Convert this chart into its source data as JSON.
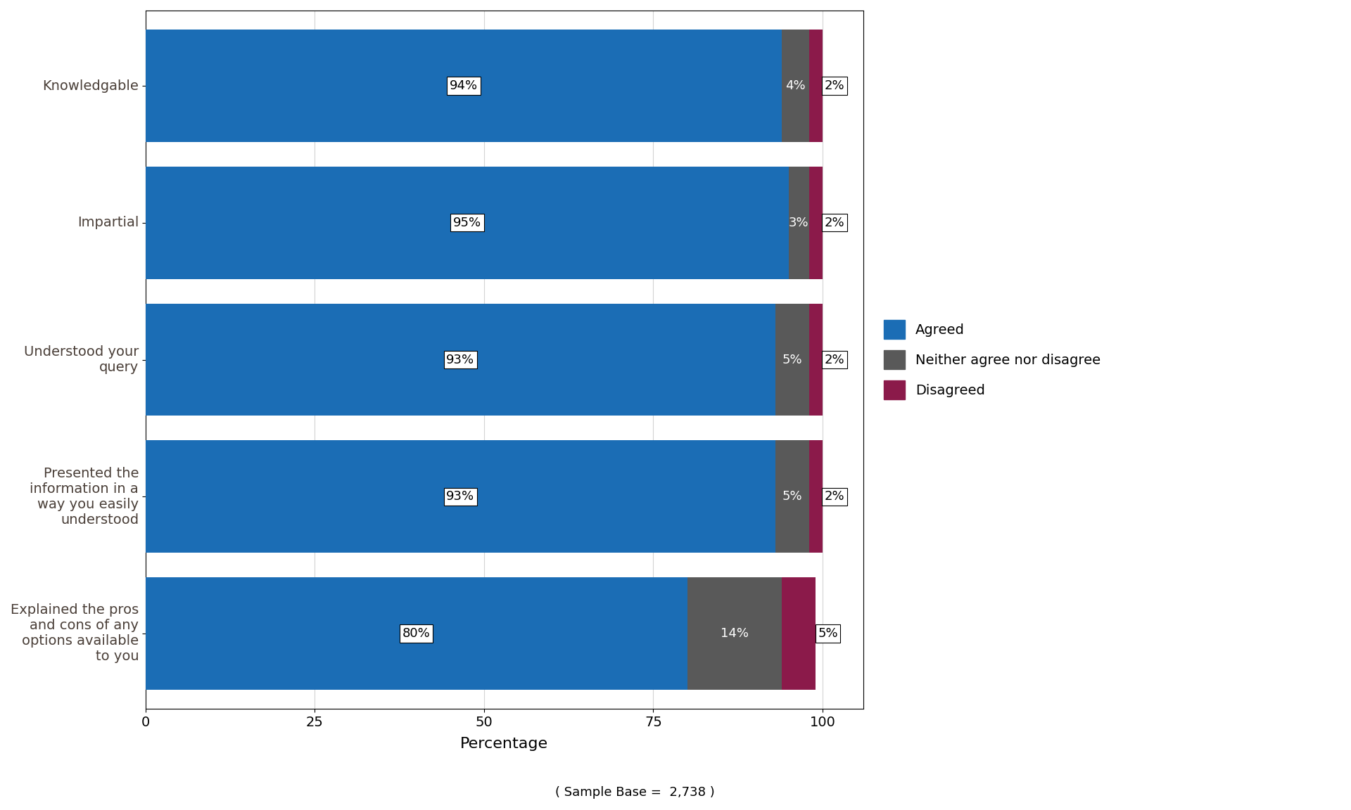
{
  "categories": [
    "Knowledgable",
    "Impartial",
    "Understood your\nquery",
    "Presented the\ninformation in a\nway you easily\nunderstood",
    "Explained the pros\nand cons of any\noptions available\nto you"
  ],
  "agreed": [
    94,
    95,
    93,
    93,
    80
  ],
  "neither": [
    4,
    3,
    5,
    5,
    14
  ],
  "disagreed": [
    2,
    2,
    2,
    2,
    5
  ],
  "agreed_color": "#1B6DB5",
  "neither_color": "#595959",
  "disagreed_color": "#8B1A4A",
  "legend_labels": [
    "Agreed",
    "Neither agree nor disagree",
    "Disagreed"
  ],
  "xlabel": "Percentage",
  "sample_base": "( Sample Base =  2,738 )",
  "xlim": [
    0,
    106
  ],
  "xticks": [
    0,
    25,
    50,
    75,
    100
  ],
  "bar_height": 0.82,
  "label_fontsize": 14,
  "tick_fontsize": 14,
  "xlabel_fontsize": 16,
  "annotation_fontsize": 13,
  "sample_fontsize": 13,
  "background_color": "#FFFFFF",
  "text_color": "#4A3F38",
  "category_fontsize": 14
}
